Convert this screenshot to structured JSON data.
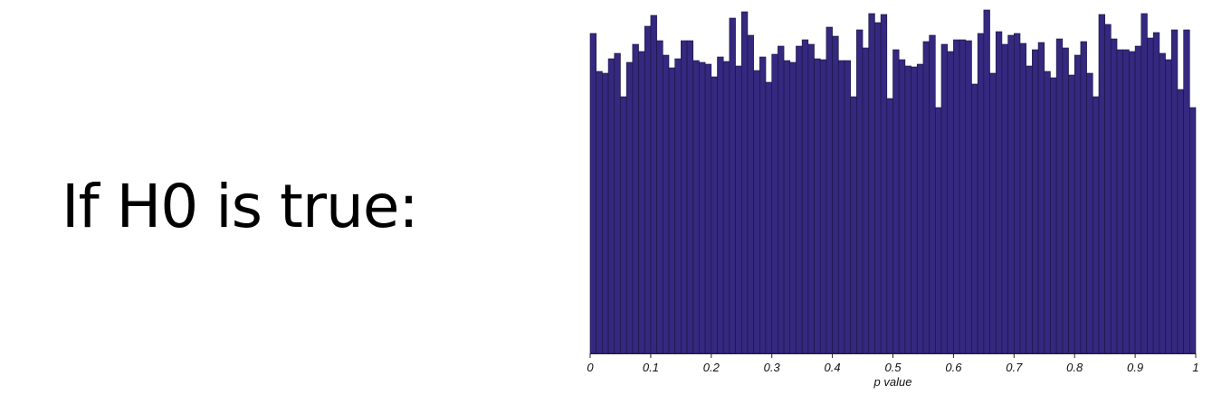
{
  "slide": {
    "headline": "If H0 is true:"
  },
  "chart_data": {
    "type": "bar",
    "xlabel": "p value",
    "ylabel": "",
    "xlim": [
      0,
      1
    ],
    "ylim": [
      0,
      390
    ],
    "bar_color": "#34287f",
    "bin_width": 0.01,
    "x_ticks": [
      {
        "value": 0,
        "label": "0"
      },
      {
        "value": 0.1,
        "label": "0.1"
      },
      {
        "value": 0.2,
        "label": "0.2"
      },
      {
        "value": 0.3,
        "label": "0.3"
      },
      {
        "value": 0.4,
        "label": "0.4"
      },
      {
        "value": 0.5,
        "label": "0.5"
      },
      {
        "value": 0.6,
        "label": "0.6"
      },
      {
        "value": 0.7,
        "label": "0.7"
      },
      {
        "value": 0.8,
        "label": "0.8"
      },
      {
        "value": 0.9,
        "label": "0.9"
      },
      {
        "value": 1,
        "label": "1"
      }
    ],
    "values": [
      354,
      312,
      310,
      326,
      332,
      284,
      322,
      342,
      334,
      362,
      374,
      346,
      330,
      316,
      326,
      346,
      346,
      324,
      322,
      320,
      306,
      328,
      323,
      371,
      318,
      378,
      352,
      313,
      328,
      300,
      331,
      340,
      324,
      322,
      340,
      347,
      342,
      326,
      325,
      361,
      351,
      324,
      324,
      284,
      358,
      338,
      376,
      366,
      375,
      282,
      336,
      325,
      318,
      317,
      320,
      345,
      352,
      272,
      342,
      334,
      347,
      347,
      346,
      298,
      354,
      380,
      310,
      356,
      342,
      352,
      354,
      343,
      318,
      336,
      344,
      312,
      305,
      348,
      338,
      308,
      330,
      345,
      310,
      284,
      375,
      364,
      348,
      336,
      336,
      334,
      340,
      376,
      349,
      355,
      332,
      325,
      358,
      292,
      358,
      272
    ]
  }
}
